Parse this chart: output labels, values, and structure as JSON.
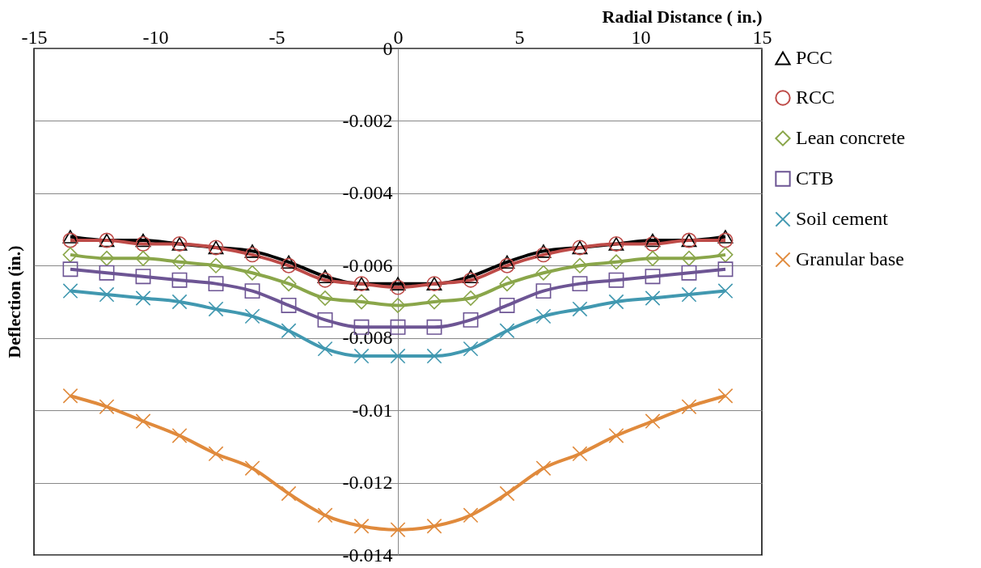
{
  "chart_data": {
    "type": "line",
    "xlabel": "Radial Distance ( in.)",
    "ylabel": "Deflection (in.)",
    "x": [
      -13.5,
      -12,
      -10.5,
      -9,
      -7.5,
      -6,
      -4.5,
      -3,
      -1.5,
      0,
      1.5,
      3,
      4.5,
      6,
      7.5,
      9,
      10.5,
      12,
      13.5
    ],
    "xlim": [
      -15,
      15
    ],
    "xticks": [
      -15,
      -10,
      -5,
      0,
      5,
      10,
      15
    ],
    "ylim": [
      -0.014,
      0
    ],
    "yticks": [
      0,
      -0.002,
      -0.004,
      -0.006,
      -0.008,
      -0.01,
      -0.012,
      -0.014
    ],
    "grid": "y",
    "legend": "right",
    "line_style": "solid",
    "series": [
      {
        "name": "PCC",
        "color": "#000000",
        "marker": "triangle",
        "values": [
          -0.0052,
          -0.0053,
          -0.0053,
          -0.0054,
          -0.0055,
          -0.0056,
          -0.0059,
          -0.0063,
          -0.0065,
          -0.0065,
          -0.0065,
          -0.0063,
          -0.0059,
          -0.0056,
          -0.0055,
          -0.0054,
          -0.0053,
          -0.0053,
          -0.0052
        ]
      },
      {
        "name": "RCC",
        "color": "#be4b48",
        "marker": "circle",
        "values": [
          -0.0053,
          -0.0053,
          -0.0054,
          -0.0054,
          -0.0055,
          -0.0057,
          -0.006,
          -0.0064,
          -0.0065,
          -0.0066,
          -0.0065,
          -0.0064,
          -0.006,
          -0.0057,
          -0.0055,
          -0.0054,
          -0.0054,
          -0.0053,
          -0.0053
        ]
      },
      {
        "name": "Lean concrete",
        "color": "#8aa64a",
        "marker": "diamond",
        "values": [
          -0.0057,
          -0.0058,
          -0.0058,
          -0.0059,
          -0.006,
          -0.0062,
          -0.0065,
          -0.0069,
          -0.007,
          -0.0071,
          -0.007,
          -0.0069,
          -0.0065,
          -0.0062,
          -0.006,
          -0.0059,
          -0.0058,
          -0.0058,
          -0.0057
        ]
      },
      {
        "name": "CTB",
        "color": "#6d5594",
        "marker": "square",
        "values": [
          -0.0061,
          -0.0062,
          -0.0063,
          -0.0064,
          -0.0065,
          -0.0067,
          -0.0071,
          -0.0075,
          -0.0077,
          -0.0077,
          -0.0077,
          -0.0075,
          -0.0071,
          -0.0067,
          -0.0065,
          -0.0064,
          -0.0063,
          -0.0062,
          -0.0061
        ]
      },
      {
        "name": "Soil cement",
        "color": "#4198b0",
        "marker": "cross",
        "values": [
          -0.0067,
          -0.0068,
          -0.0069,
          -0.007,
          -0.0072,
          -0.0074,
          -0.0078,
          -0.0083,
          -0.0085,
          -0.0085,
          -0.0085,
          -0.0083,
          -0.0078,
          -0.0074,
          -0.0072,
          -0.007,
          -0.0069,
          -0.0068,
          -0.0067
        ]
      },
      {
        "name": "Granular base",
        "color": "#e08a3c",
        "marker": "cross",
        "values": [
          -0.0096,
          -0.0099,
          -0.0103,
          -0.0107,
          -0.0112,
          -0.0116,
          -0.0123,
          -0.0129,
          -0.0132,
          -0.0133,
          -0.0132,
          -0.0129,
          -0.0123,
          -0.0116,
          -0.0112,
          -0.0107,
          -0.0103,
          -0.0099,
          -0.0096
        ]
      }
    ]
  }
}
